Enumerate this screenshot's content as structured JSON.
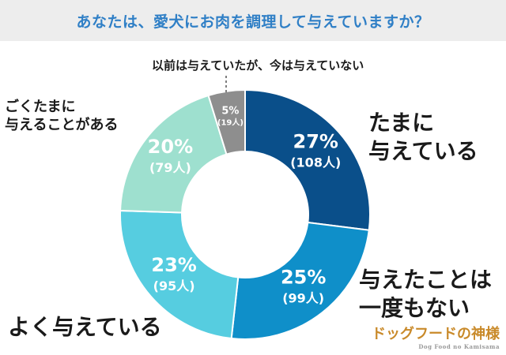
{
  "title": "あなたは、愛犬にお肉を調理して与えていますか？",
  "chart_data": {
    "type": "pie",
    "donut": true,
    "slices": [
      {
        "label_lines": [
          "たまに",
          "与えている"
        ],
        "percent": "27%",
        "count": "(108人)",
        "value": 108,
        "color": "#0a4f8a"
      },
      {
        "label_lines": [
          "与えたことは",
          "一度もない"
        ],
        "percent": "25%",
        "count": "(99人)",
        "value": 99,
        "color": "#0f8fc9"
      },
      {
        "label_lines": [
          "よく与えている"
        ],
        "percent": "23%",
        "count": "(95人)",
        "value": 95,
        "color": "#56cde0"
      },
      {
        "label_lines": [
          "ごくたまに",
          "与えることがある"
        ],
        "percent": "20%",
        "count": "(79人)",
        "value": 79,
        "color": "#9ee0cf"
      },
      {
        "label_lines": [
          "以前は与えていたが、今は与えていない"
        ],
        "percent": "5%",
        "count": "(19人)",
        "value": 19,
        "color": "#8e8e8e"
      }
    ]
  },
  "brand": {
    "main": "ドッグフードの神様",
    "sub": "Dog Food no Kamisama"
  }
}
